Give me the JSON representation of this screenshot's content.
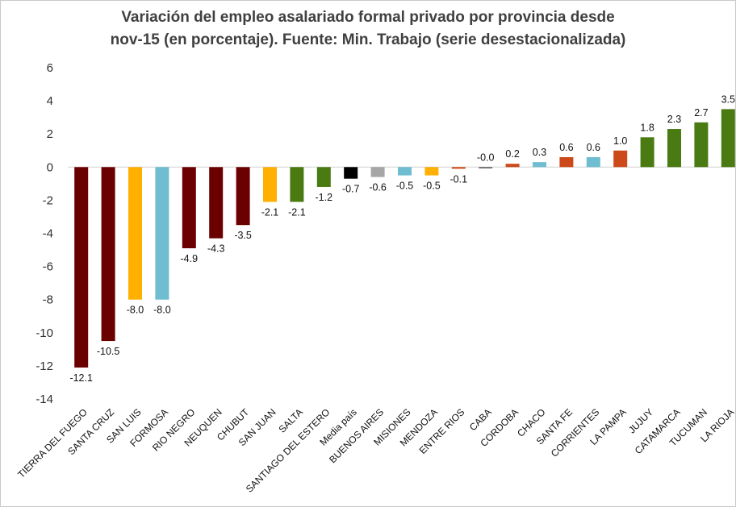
{
  "chart_data": {
    "type": "bar",
    "title": "Variación del empleo asalariado formal privado por provincia desde nov-15 (en porcentaje). Fuente: Min. Trabajo (serie desestacionalizada)",
    "title_lines": [
      "Variación del empleo asalariado formal privado por provincia desde",
      "nov-15 (en porcentaje). Fuente: Min. Trabajo (serie desestacionalizada)"
    ],
    "ylim": [
      -14,
      6
    ],
    "yticks": [
      "6",
      "4",
      "2",
      "0",
      "-2",
      "-4",
      "-6",
      "-8",
      "-10",
      "-12",
      "-14"
    ],
    "ytick_values": [
      6,
      4,
      2,
      0,
      -2,
      -4,
      -6,
      -8,
      -10,
      -12,
      -14
    ],
    "grid": false,
    "categories": [
      "TIERRA DEL FUEGO",
      "SANTA CRUZ",
      "SAN LUIS",
      "FORMOSA",
      "RIO NEGRO",
      "NEUQUEN",
      "CHUBUT",
      "SAN JUAN",
      "SALTA",
      "SANTIAGO DEL ESTERO",
      "Media país",
      "BUENOS AIRES",
      "MISIONES",
      "MENDOZA",
      "ENTRE RIOS",
      "CABA",
      "CORDOBA",
      "CHACO",
      "SANTA FE",
      "CORRIENTES",
      "LA PAMPA",
      "JUJUY",
      "CATAMARCA",
      "TUCUMAN",
      "LA RIOJA"
    ],
    "values": [
      -12.1,
      -10.5,
      -8.0,
      -8.0,
      -4.9,
      -4.3,
      -3.5,
      -2.1,
      -2.1,
      -1.2,
      -0.7,
      -0.6,
      -0.5,
      -0.5,
      -0.1,
      -0.0,
      0.2,
      0.3,
      0.6,
      0.6,
      1.0,
      1.8,
      2.3,
      2.7,
      3.5
    ],
    "labels": [
      "-12.1",
      "-10.5",
      "-8.0",
      "-8.0",
      "-4.9",
      "-4.3",
      "-3.5",
      "-2.1",
      "-2.1",
      "-1.2",
      "-0.7",
      "-0.6",
      "-0.5",
      "-0.5",
      "-0.1",
      "-0.0",
      "0.2",
      "0.3",
      "0.6",
      "0.6",
      "1.0",
      "1.8",
      "2.3",
      "2.7",
      "3.5"
    ],
    "colors": [
      "#6b0000",
      "#6b0000",
      "#ffb000",
      "#6fbdd0",
      "#6b0000",
      "#6b0000",
      "#6b0000",
      "#ffb000",
      "#4a7a12",
      "#4a7a12",
      "#000000",
      "#a6a6a6",
      "#6fbdd0",
      "#ffb000",
      "#cc4a1a",
      "#555555",
      "#cc4a1a",
      "#6fbdd0",
      "#cc4a1a",
      "#6fbdd0",
      "#cc4a1a",
      "#4a7a12",
      "#4a7a12",
      "#4a7a12",
      "#4a7a12"
    ]
  }
}
